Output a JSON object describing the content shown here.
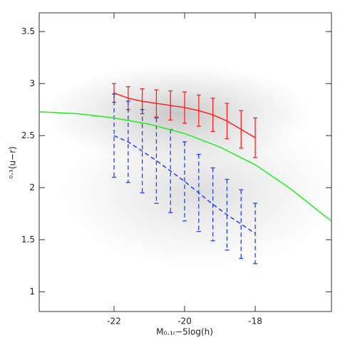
{
  "chart_data": {
    "type": "line",
    "x_label": "M₀.₁ᵣ−5log(h)",
    "y_label": "⁰·¹(u−r)",
    "xlim": [
      -24.12,
      -15.84
    ],
    "xticks": [
      -22,
      -20,
      -18
    ],
    "ylim": [
      0.81,
      3.68
    ],
    "yticks": [
      1,
      1.5,
      2,
      2.5,
      3,
      3.5
    ],
    "series": [
      {
        "color": "#ff2020",
        "dash": false,
        "x": [
          -22.0,
          -21.6,
          -21.2,
          -20.8,
          -20.4,
          -20.0,
          -19.6,
          -19.2,
          -18.8,
          -18.4,
          -18.0
        ],
        "values": [
          2.91,
          2.86,
          2.83,
          2.81,
          2.79,
          2.77,
          2.74,
          2.7,
          2.64,
          2.56,
          2.48
        ],
        "errors": [
          0.09,
          0.11,
          0.12,
          0.13,
          0.14,
          0.15,
          0.15,
          0.16,
          0.17,
          0.18,
          0.19
        ]
      },
      {
        "color": "#2040ff",
        "dash": true,
        "x": [
          -22.0,
          -21.6,
          -21.2,
          -20.8,
          -20.4,
          -20.0,
          -19.6,
          -19.2,
          -18.8,
          -18.4,
          -18.0
        ],
        "values": [
          2.5,
          2.44,
          2.35,
          2.26,
          2.16,
          2.06,
          1.95,
          1.84,
          1.74,
          1.65,
          1.56
        ],
        "errors": [
          0.4,
          0.39,
          0.4,
          0.41,
          0.4,
          0.38,
          0.37,
          0.35,
          0.34,
          0.33,
          0.29
        ]
      },
      {
        "color": "#22ee22",
        "dash": false,
        "x": [
          -24.12,
          -23.0,
          -22.0,
          -21.0,
          -20.0,
          -19.0,
          -18.0,
          -17.0,
          -16.0,
          -15.84
        ],
        "values": [
          2.73,
          2.71,
          2.67,
          2.61,
          2.52,
          2.39,
          2.22,
          1.99,
          1.72,
          1.68
        ]
      }
    ]
  }
}
